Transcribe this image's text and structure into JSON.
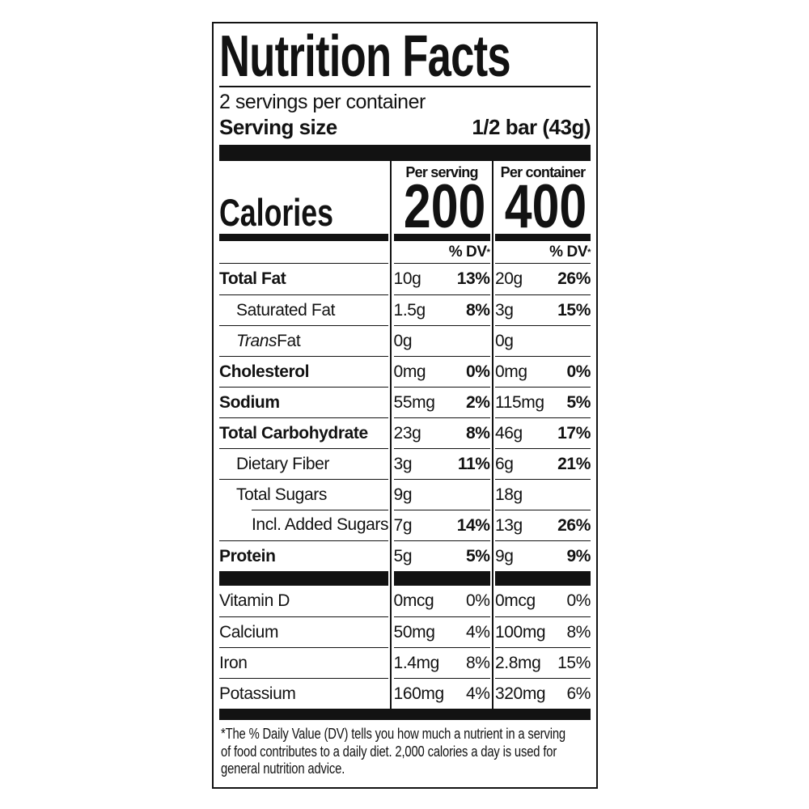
{
  "label": {
    "title": "Nutrition Facts",
    "servings_per_container": "2 servings per container",
    "serving_size_label": "Serving size",
    "serving_size_value": "1/2 bar (43g)",
    "calories_label": "Calories",
    "columns": [
      {
        "header": "Per serving",
        "calories": "200",
        "dv_label": "% DV",
        "dv_asterisk": "*"
      },
      {
        "header": "Per container",
        "calories": "400",
        "dv_label": "% DV",
        "dv_asterisk": "*"
      }
    ],
    "rows": [
      {
        "name": "Total Fat",
        "serving_amount": "10g",
        "serving_dv": "13%",
        "container_amount": "20g",
        "container_dv": "26%"
      },
      {
        "name": "Saturated Fat",
        "serving_amount": "1.5g",
        "serving_dv": "8%",
        "container_amount": "3g",
        "container_dv": "15%"
      },
      {
        "name_italic": "Trans",
        "name": " Fat",
        "serving_amount": "0g",
        "serving_dv": "",
        "container_amount": "0g",
        "container_dv": ""
      },
      {
        "name": "Cholesterol",
        "serving_amount": "0mg",
        "serving_dv": "0%",
        "container_amount": "0mg",
        "container_dv": "0%"
      },
      {
        "name": "Sodium",
        "serving_amount": "55mg",
        "serving_dv": "2%",
        "container_amount": "115mg",
        "container_dv": "5%"
      },
      {
        "name": "Total Carbohydrate",
        "serving_amount": "23g",
        "serving_dv": "8%",
        "container_amount": "46g",
        "container_dv": "17%"
      },
      {
        "name": "Dietary Fiber",
        "serving_amount": "3g",
        "serving_dv": "11%",
        "container_amount": "6g",
        "container_dv": "21%"
      },
      {
        "name": "Total Sugars",
        "serving_amount": "9g",
        "serving_dv": "",
        "container_amount": "18g",
        "container_dv": ""
      },
      {
        "name": "Incl. Added Sugars",
        "serving_amount": "7g",
        "serving_dv": "14%",
        "container_amount": "13g",
        "container_dv": "26%"
      },
      {
        "name": "Protein",
        "serving_amount": "5g",
        "serving_dv": "5%",
        "container_amount": "9g",
        "container_dv": "9%"
      }
    ],
    "vitamin_rows": [
      {
        "name": "Vitamin D",
        "serving_amount": "0mcg",
        "serving_dv": "0%",
        "container_amount": "0mcg",
        "container_dv": "0%"
      },
      {
        "name": "Calcium",
        "serving_amount": "50mg",
        "serving_dv": "4%",
        "container_amount": "100mg",
        "container_dv": "8%"
      },
      {
        "name": "Iron",
        "serving_amount": "1.4mg",
        "serving_dv": "8%",
        "container_amount": "2.8mg",
        "container_dv": "15%"
      },
      {
        "name": "Potassium",
        "serving_amount": "160mg",
        "serving_dv": "4%",
        "container_amount": "320mg",
        "container_dv": "6%"
      }
    ],
    "footnote_lines": [
      "*The % Daily Value (DV) tells you how much a nutrient in a serving",
      "of food contributes to a daily diet. 2,000 calories a day is used for",
      "general nutrition advice."
    ],
    "colors": {
      "ink": "#121212",
      "paper": "#ffffff"
    }
  }
}
